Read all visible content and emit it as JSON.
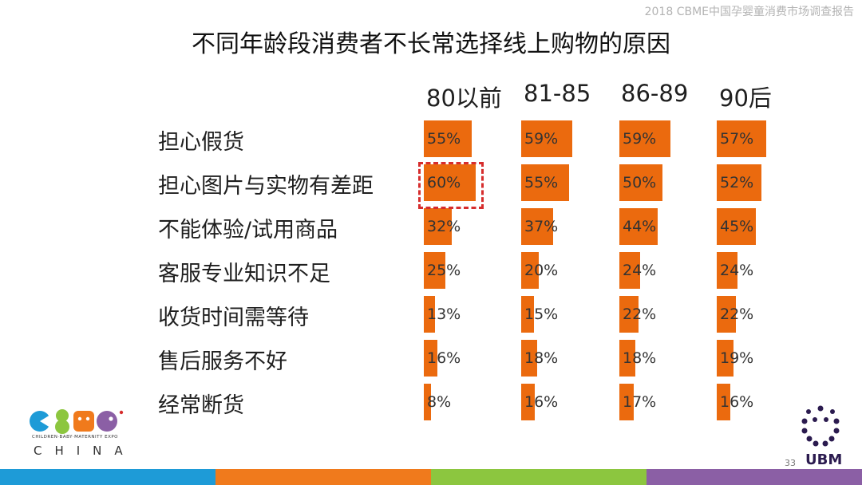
{
  "header": {
    "report_title": "2018 CBME中国孕婴童消费市场调查报告"
  },
  "slide": {
    "title": "不同年龄段消费者不长常选择线上购物的原因",
    "page_number": "33"
  },
  "colors": {
    "bar": "#EB6A0E",
    "highlight": "#D62D2D",
    "footer": [
      "#1E9BD7",
      "#F07A1C",
      "#8CC63F",
      "#8B5FA5"
    ]
  },
  "logos": {
    "cbme": {
      "wordmark": "CBME",
      "tagline": "CHILDREN·BABY·MATERNITY EXPO",
      "sub": "CHINA"
    },
    "ubm": {
      "wordmark": "UBM"
    }
  },
  "chart_data": {
    "type": "bar",
    "title": "不同年龄段消费者不长常选择线上购物的原因",
    "categories": [
      "担心假货",
      "担心图片与实物有差距",
      "不能体验/试用商品",
      "客服专业知识不足",
      "收货时间需等待",
      "售后服务不好",
      "经常断货"
    ],
    "series": [
      {
        "name": "80以前",
        "values": [
          55,
          60,
          32,
          25,
          13,
          16,
          8
        ]
      },
      {
        "name": "81-85",
        "values": [
          59,
          55,
          37,
          20,
          15,
          18,
          16
        ]
      },
      {
        "name": "86-89",
        "values": [
          59,
          50,
          44,
          24,
          22,
          18,
          17
        ]
      },
      {
        "name": "90后",
        "values": [
          57,
          52,
          45,
          24,
          22,
          19,
          16
        ]
      }
    ],
    "value_suffix": "%",
    "highlight": {
      "series": "80以前",
      "category": "担心图片与实物有差距"
    }
  }
}
